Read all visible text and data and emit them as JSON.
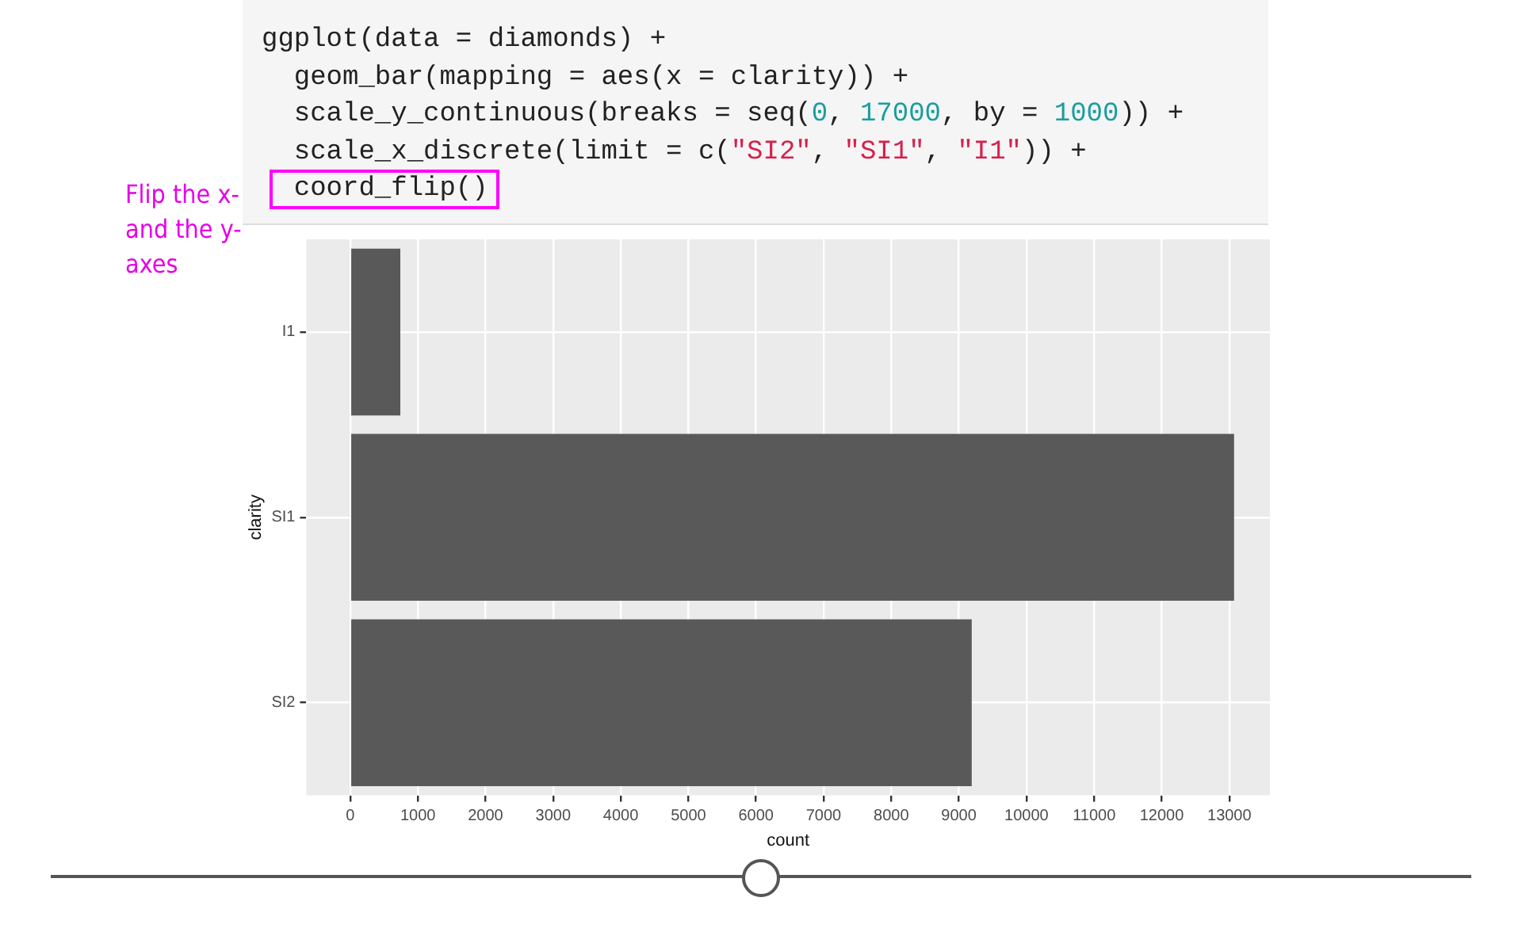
{
  "chart_data": {
    "type": "bar",
    "orientation": "horizontal",
    "xlabel": "count",
    "ylabel": "clarity",
    "categories": [
      "I1",
      "SI1",
      "SI2"
    ],
    "values": [
      740,
      13070,
      9190
    ],
    "color": "#595959",
    "xlim": [
      -650,
      13600
    ],
    "xticks": [
      0,
      1000,
      2000,
      3000,
      4000,
      5000,
      6000,
      7000,
      8000,
      9000,
      10000,
      11000,
      12000,
      13000
    ],
    "grid": true,
    "legend": false,
    "annotations": [
      "ggplot(data = diamonds) +",
      "  geom_bar(mapping = aes(x = clarity)) +",
      "  scale_y_continuous(breaks = seq(0, 17000, by = 1000)) +",
      "  scale_x_discrete(limit = c(\"SI2\", \"SI1\", \"I1\")) +",
      "  coord_flip()",
      "Flip the x- and the y-axes"
    ]
  }
}
